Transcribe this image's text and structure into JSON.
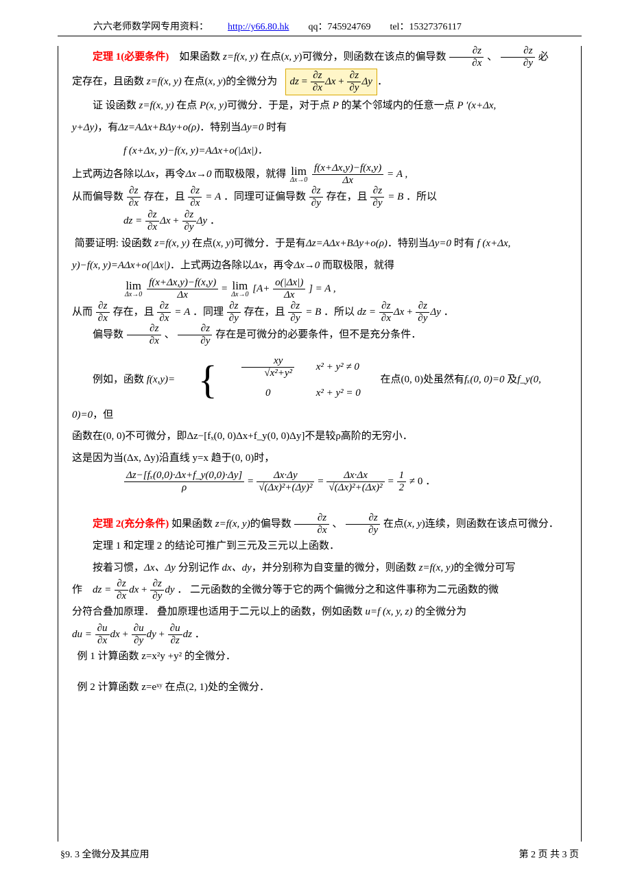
{
  "header": {
    "source": "六六老师数学网专用资料：",
    "url": "http://y66.80.hk",
    "qq_label": "qq：",
    "qq": "745924769",
    "tel_label": "tel：",
    "tel": "15327376117"
  },
  "theorem1": {
    "label": "定理 1(必要条件)",
    "line1_a": "如果函数 ",
    "line1_b": " 在点(",
    "line1_c": ")可微分，则函数在该点的偏导数",
    "line1_d": "、",
    "line1_e": " 必",
    "line2_a": "定存在，且函数 ",
    "line2_b": " 在点(",
    "line2_c": ")的全微分为",
    "formula_box": "dz = (∂z/∂x)Δx + (∂z/∂y)Δy"
  },
  "proof": {
    "p1_a": "证  设函数 ",
    "p1_b": " 在点 ",
    "p1_c": "可微分．于是，对于点 ",
    "p1_d": " 的某个邻域内的任意一点 ",
    "p2_a": "，有",
    "p2_b": "．特别当",
    "p2_c": " 时有",
    "eq1": "f (x+Δx, y)−f(x, y)=AΔx+o(|Δx|)．",
    "p3_a": "上式两边各除以",
    "p3_b": "，再令",
    "p3_c": " 而取极限，就得",
    "p4_a": "从而偏导数",
    "p4_b": " 存在，且",
    "p4_c": "．同理可证偏导数",
    "p4_d": " 存在，且",
    "p4_e": "．所以",
    "brief_a": "简要证明: 设函数 ",
    "brief_b": " 在点(",
    "brief_c": ")可微分．于是有",
    "brief_d": "．特别当",
    "brief_e": " 时有 ",
    "brief2_a": "．上式两边各除以",
    "brief2_b": "，再令",
    "brief2_c": " 而取极限，就得",
    "p5_a": "从而",
    "p5_b": " 存在，且",
    "p5_c": "．同理",
    "p5_d": " 存在，且",
    "p5_e": "．所以",
    "p6_a": "偏导数",
    "p6_b": "、",
    "p6_c": "存在是可微分的必要条件，但不是充分条件．",
    "ex_a": "例如，函数",
    "ex_b": "在点(0, 0)处虽然有",
    "ex_c": " 及",
    "ex_d": "，但",
    "p7": "函数在(0, 0)不可微分，即Δz−[fₓ(0, 0)Δx+f_y(0, 0)Δy]不是较ρ高阶的无穷小．",
    "p8": "这是因为当(Δx, Δy)沿直线 y=x 趋于(0, 0)时，"
  },
  "theorem2": {
    "label": "定理 2(充分条件)",
    "t2_a": " 如果函数 ",
    "t2_b": "的偏导数",
    "t2_c": "、",
    "t2_d": " 在点(",
    "t2_e": ")连续，则函数在该点可微分．",
    "p9": "定理 1 和定理 2 的结论可推广到三元及三元以上函数．",
    "p10_a": "按着习惯，",
    "p10_b": " 分别记作 ",
    "p10_c": "，并分别称为自变量的微分，则函数 ",
    "p10_d": "的全微分可写",
    "p11_a": "作",
    "p11_b": "．   二元函数的全微分等于它的两个偏微分之和这件事称为二元函数的微",
    "p12_a": "分符合叠加原理．  叠加原理也适用于二元以上的函数，例如函数 ",
    "p12_b": "  的全微分为"
  },
  "examples": {
    "ex1": "例 1  计算函数 z=x²y +y² 的全微分．",
    "ex2": "例 2  计算函数 z=eˣʸ 在点(2, 1)处的全微分．"
  },
  "footer": {
    "left": "§9. 3 全微分及其应用",
    "right": "第 2 页 共 3 页"
  },
  "math_text": {
    "z_eq_fxy": "z=f(x, y)",
    "xy": "x, y",
    "dz_dx": "∂z/∂x",
    "dz_dy": "∂z/∂y",
    "Pxy": "P(x, y)",
    "P": "P",
    "Pprime": "P ′(x+Δx,",
    "yDy": "y+Δy)",
    "dz_ab": "Δz=AΔx+BΔy+o(ρ)",
    "dy0": "Δy=0",
    "dx": "Δx",
    "dx_to_0": "Δx→0",
    "eqA": "= A",
    "eqA2": "= A ,",
    "eqB": "= B",
    "fx00": "fₓ(0, 0)=0",
    "fy00": "f_y(0, 0)=0",
    "dxdy": "Δx、Δy",
    "dxdy2": "dx、dy",
    "u_fxyz": "u=f (x, y, z)",
    "half_neq_0": " ≠ 0 ．",
    "fxdx_num": "f(x+Δx,y)−f(x,y)",
    "lim_top": "lim",
    "o_dx_num": "o(|Δx|)",
    "Aplus": "[A+",
    "close_eqA": "] = A ,",
    "x2y2_ne0": "x² + y² ≠ 0",
    "x2y2_eq0": "x² + y² = 0",
    "xy_only": "xy",
    "sqrt_x2y2": "x²+y²",
    "zero": "0",
    "long_num": "Δz−[fₓ(0,0)·Δx+f_y(0,0)·Δy]",
    "rho": "ρ",
    "dxdy_prod": "Δx·Δy",
    "dxdx_prod": "Δx·Δx",
    "dx2dy2": "(Δx)²+(Δy)²",
    "dx2dx2": "(Δx)²+(Δx)²",
    "one": "1",
    "two": "2",
    "fxy_piece": "f(x,y)=",
    "comma": "，",
    "dz_formula": "dz = ",
    "du_formula": "du = ",
    "Dx_sym": "Δx",
    "Dy_sym": "Δy",
    "dx_sym": "dx",
    "dy_sym": "dy",
    "dz_sym": "dz",
    "plus": " + ",
    "dot": " ．",
    "du_dx": "∂u/∂x",
    "du_dy": "∂u/∂y",
    "du_dz": "∂u/∂z",
    "eq_sign": " = "
  }
}
